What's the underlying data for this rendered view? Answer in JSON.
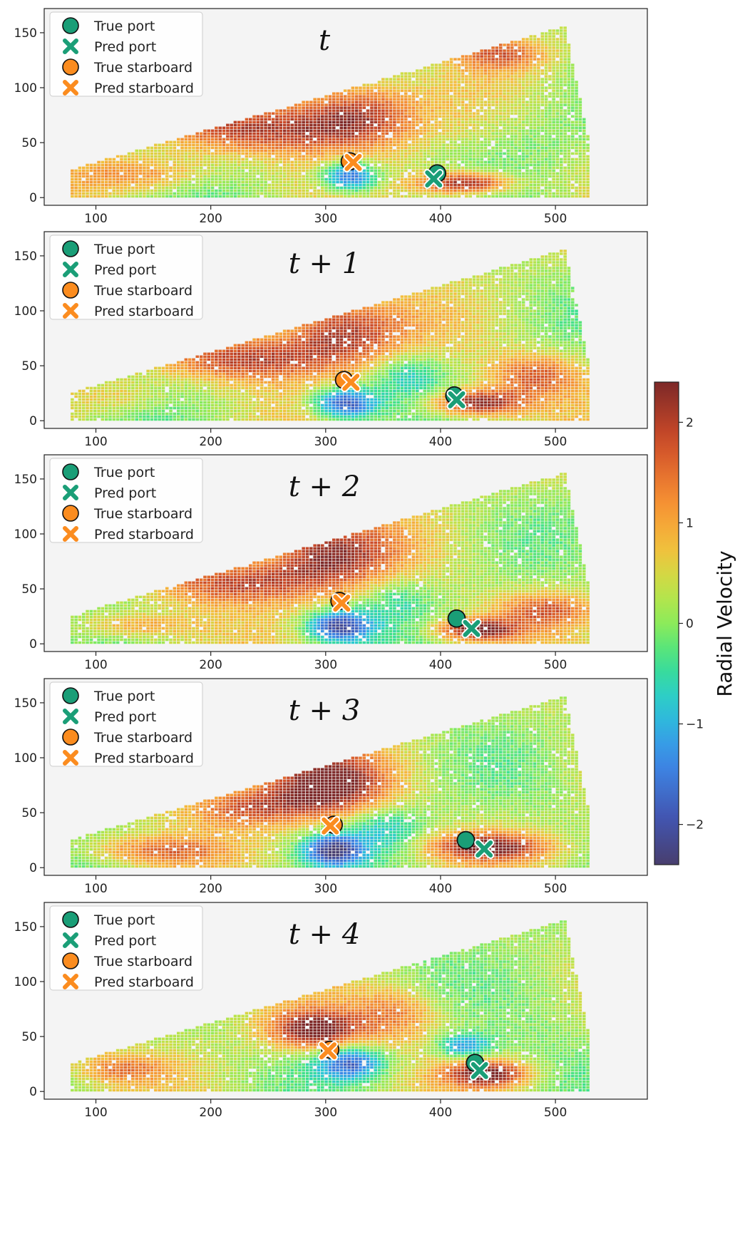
{
  "chart_data": [
    {
      "type": "scatter",
      "title": "t",
      "xlim": [
        55,
        580
      ],
      "ylim": [
        -7,
        172
      ],
      "xticks": [
        100,
        200,
        300,
        400,
        500
      ],
      "yticks": [
        0,
        50,
        100,
        150
      ],
      "series": [
        {
          "name": "True port",
          "x": [
            397
          ],
          "y": [
            22
          ]
        },
        {
          "name": "Pred port",
          "x": [
            394
          ],
          "y": [
            17
          ]
        },
        {
          "name": "True starboard",
          "x": [
            321
          ],
          "y": [
            33
          ]
        },
        {
          "name": "Pred starboard",
          "x": [
            324
          ],
          "y": [
            32
          ]
        }
      ],
      "blobs": [
        {
          "x": 320,
          "y": 18,
          "v": -2.2,
          "sx": 25,
          "sy": 14
        },
        {
          "x": 325,
          "y": 75,
          "v": 2.0,
          "sx": 55,
          "sy": 30
        },
        {
          "x": 240,
          "y": 60,
          "v": 1.6,
          "sx": 80,
          "sy": 22
        },
        {
          "x": 420,
          "y": 12,
          "v": 2.3,
          "sx": 40,
          "sy": 10
        },
        {
          "x": 450,
          "y": 130,
          "v": 1.4,
          "sx": 40,
          "sy": 15
        },
        {
          "x": 140,
          "y": 20,
          "v": 1.0,
          "sx": 60,
          "sy": 15
        },
        {
          "x": 480,
          "y": 60,
          "v": -0.3,
          "sx": 50,
          "sy": 40
        }
      ]
    },
    {
      "type": "scatter",
      "title": "t + 1",
      "xlim": [
        55,
        580
      ],
      "ylim": [
        -7,
        172
      ],
      "xticks": [
        100,
        200,
        300,
        400,
        500
      ],
      "yticks": [
        0,
        50,
        100,
        150
      ],
      "series": [
        {
          "name": "True port",
          "x": [
            412
          ],
          "y": [
            23
          ]
        },
        {
          "name": "Pred port",
          "x": [
            414
          ],
          "y": [
            19
          ]
        },
        {
          "name": "True starboard",
          "x": [
            316
          ],
          "y": [
            37
          ]
        },
        {
          "name": "Pred starboard",
          "x": [
            322
          ],
          "y": [
            35
          ]
        }
      ],
      "blobs": [
        {
          "x": 315,
          "y": 15,
          "v": -2.3,
          "sx": 28,
          "sy": 14
        },
        {
          "x": 310,
          "y": 80,
          "v": 2.0,
          "sx": 55,
          "sy": 30
        },
        {
          "x": 230,
          "y": 55,
          "v": 1.7,
          "sx": 70,
          "sy": 20
        },
        {
          "x": 430,
          "y": 15,
          "v": 2.3,
          "sx": 40,
          "sy": 12
        },
        {
          "x": 370,
          "y": 40,
          "v": -0.9,
          "sx": 30,
          "sy": 20
        },
        {
          "x": 480,
          "y": 40,
          "v": 1.4,
          "sx": 40,
          "sy": 20
        },
        {
          "x": 120,
          "y": 20,
          "v": 0.6,
          "sx": 40,
          "sy": 15
        }
      ]
    },
    {
      "type": "scatter",
      "title": "t + 2",
      "xlim": [
        55,
        580
      ],
      "ylim": [
        -7,
        172
      ],
      "xticks": [
        100,
        200,
        300,
        400,
        500
      ],
      "yticks": [
        0,
        50,
        100,
        150
      ],
      "series": [
        {
          "name": "True port",
          "x": [
            414
          ],
          "y": [
            23
          ]
        },
        {
          "name": "Pred port",
          "x": [
            427
          ],
          "y": [
            14
          ]
        },
        {
          "name": "True starboard",
          "x": [
            312
          ],
          "y": [
            39
          ]
        },
        {
          "name": "Pred starboard",
          "x": [
            314
          ],
          "y": [
            37
          ]
        }
      ],
      "blobs": [
        {
          "x": 310,
          "y": 15,
          "v": -2.3,
          "sx": 28,
          "sy": 14
        },
        {
          "x": 300,
          "y": 80,
          "v": 2.0,
          "sx": 55,
          "sy": 30
        },
        {
          "x": 220,
          "y": 55,
          "v": 1.7,
          "sx": 70,
          "sy": 20
        },
        {
          "x": 430,
          "y": 12,
          "v": 2.3,
          "sx": 35,
          "sy": 10
        },
        {
          "x": 360,
          "y": 40,
          "v": -0.6,
          "sx": 30,
          "sy": 20
        },
        {
          "x": 490,
          "y": 30,
          "v": 1.3,
          "sx": 40,
          "sy": 15
        },
        {
          "x": 130,
          "y": 15,
          "v": 1.0,
          "sx": 50,
          "sy": 12
        }
      ]
    },
    {
      "type": "scatter",
      "title": "t + 3",
      "xlim": [
        55,
        580
      ],
      "ylim": [
        -7,
        172
      ],
      "xticks": [
        100,
        200,
        300,
        400,
        500
      ],
      "yticks": [
        0,
        50,
        100,
        150
      ],
      "series": [
        {
          "name": "True port",
          "x": [
            422
          ],
          "y": [
            25
          ]
        },
        {
          "name": "Pred port",
          "x": [
            438
          ],
          "y": [
            17
          ]
        },
        {
          "name": "True starboard",
          "x": [
            307
          ],
          "y": [
            39
          ]
        },
        {
          "name": "Pred starboard",
          "x": [
            304
          ],
          "y": [
            38
          ]
        }
      ],
      "blobs": [
        {
          "x": 305,
          "y": 15,
          "v": -2.3,
          "sx": 25,
          "sy": 14
        },
        {
          "x": 300,
          "y": 75,
          "v": 2.2,
          "sx": 50,
          "sy": 28
        },
        {
          "x": 230,
          "y": 55,
          "v": 1.5,
          "sx": 60,
          "sy": 20
        },
        {
          "x": 440,
          "y": 18,
          "v": 2.0,
          "sx": 50,
          "sy": 12
        },
        {
          "x": 350,
          "y": 35,
          "v": -0.9,
          "sx": 35,
          "sy": 20
        },
        {
          "x": 150,
          "y": 15,
          "v": 1.1,
          "sx": 60,
          "sy": 12
        },
        {
          "x": 490,
          "y": 60,
          "v": -0.1,
          "sx": 40,
          "sy": 40
        }
      ]
    },
    {
      "type": "scatter",
      "title": "t + 4",
      "xlim": [
        55,
        580
      ],
      "ylim": [
        -7,
        172
      ],
      "xticks": [
        100,
        200,
        300,
        400,
        500
      ],
      "yticks": [
        0,
        50,
        100,
        150
      ],
      "series": [
        {
          "name": "True port",
          "x": [
            430
          ],
          "y": [
            26
          ]
        },
        {
          "name": "Pred port",
          "x": [
            434
          ],
          "y": [
            19
          ]
        },
        {
          "name": "True starboard",
          "x": [
            304
          ],
          "y": [
            38
          ]
        },
        {
          "name": "Pred starboard",
          "x": [
            302
          ],
          "y": [
            37
          ]
        }
      ],
      "blobs": [
        {
          "x": 290,
          "y": 55,
          "v": 2.3,
          "sx": 40,
          "sy": 18
        },
        {
          "x": 320,
          "y": 25,
          "v": -1.9,
          "sx": 30,
          "sy": 15
        },
        {
          "x": 420,
          "y": 40,
          "v": -1.5,
          "sx": 25,
          "sy": 12
        },
        {
          "x": 440,
          "y": 15,
          "v": 2.2,
          "sx": 35,
          "sy": 12
        },
        {
          "x": 360,
          "y": 70,
          "v": 1.2,
          "sx": 40,
          "sy": 25
        },
        {
          "x": 120,
          "y": 20,
          "v": 1.0,
          "sx": 40,
          "sy": 12
        },
        {
          "x": 490,
          "y": 80,
          "v": -0.4,
          "sx": 50,
          "sy": 50
        }
      ]
    }
  ],
  "colorbar": {
    "label": "Radial Velocity",
    "vmin": -2.4,
    "vmax": 2.4,
    "ticks": [
      2,
      1,
      0,
      -1,
      -2
    ],
    "tick_labels": [
      "2",
      "1",
      "0",
      "−1",
      "−2"
    ]
  },
  "legend_labels": [
    "True port",
    "Pred port",
    "True starboard",
    "Pred starboard"
  ],
  "colors": {
    "port": "#1a9e77",
    "starboard": "#fb8c1f",
    "panel_bg": "#f4f4f4"
  }
}
